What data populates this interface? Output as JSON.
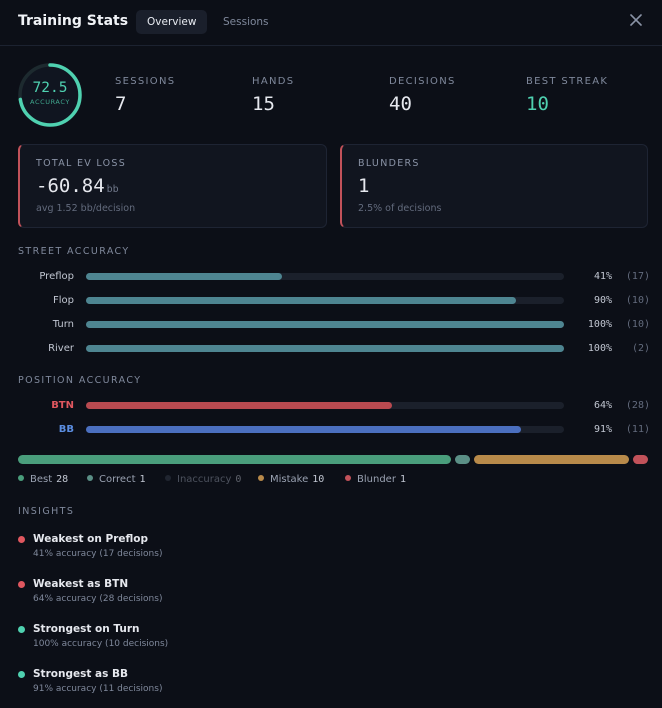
{
  "header": {
    "title": "Training Stats",
    "tabs": [
      {
        "label": "Overview",
        "active": true
      },
      {
        "label": "Sessions",
        "active": false
      }
    ],
    "close_icon": "close-icon"
  },
  "summary": {
    "accuracy": {
      "value": "72.5",
      "label": "ACCURACY",
      "fraction": 0.725,
      "color": "#4fd1b0"
    },
    "stats": [
      {
        "label": "SESSIONS",
        "value": "7"
      },
      {
        "label": "HANDS",
        "value": "15"
      },
      {
        "label": "DECISIONS",
        "value": "40"
      },
      {
        "label": "BEST STREAK",
        "value": "10"
      }
    ]
  },
  "cards": {
    "ev_loss": {
      "label": "TOTAL EV LOSS",
      "value": "-60.84",
      "unit": "bb",
      "sub": "avg 1.52 bb/decision"
    },
    "blunders": {
      "label": "BLUNDERS",
      "value": "1",
      "sub": "2.5% of decisions"
    }
  },
  "street_accuracy": {
    "title": "STREET ACCURACY",
    "rows": [
      {
        "label": "Preflop",
        "pct": "41%",
        "count": "(17)",
        "fraction": 0.41
      },
      {
        "label": "Flop",
        "pct": "90%",
        "count": "(10)",
        "fraction": 0.9
      },
      {
        "label": "Turn",
        "pct": "100%",
        "count": "(10)",
        "fraction": 1.0
      },
      {
        "label": "River",
        "pct": "100%",
        "count": "(2)",
        "fraction": 1.0
      }
    ],
    "bar_color": "#4e8591"
  },
  "position_accuracy": {
    "title": "POSITION ACCURACY",
    "rows": [
      {
        "label": "BTN",
        "pct": "64%",
        "count": "(28)",
        "fraction": 0.64,
        "color": "#b94a50"
      },
      {
        "label": "BB",
        "pct": "91%",
        "count": "(11)",
        "fraction": 0.91,
        "color": "#4b6fbf"
      }
    ]
  },
  "distribution": {
    "items": [
      {
        "name": "Best",
        "count": "28",
        "value": 28,
        "color": "#4a9e7c"
      },
      {
        "name": "Correct",
        "count": "1",
        "value": 1,
        "color": "#5b8f86"
      },
      {
        "name": "Inaccuracy",
        "count": "0",
        "value": 0,
        "color": "#3a4150"
      },
      {
        "name": "Mistake",
        "count": "10",
        "value": 10,
        "color": "#b88a4a"
      },
      {
        "name": "Blunder",
        "count": "1",
        "value": 1,
        "color": "#c2525a"
      }
    ]
  },
  "insights": {
    "title": "INSIGHTS",
    "items": [
      {
        "title": "Weakest on Preflop",
        "sub": "41% accuracy (17 decisions)",
        "color": "#e0575f"
      },
      {
        "title": "Weakest as BTN",
        "sub": "64% accuracy (28 decisions)",
        "color": "#e0575f"
      },
      {
        "title": "Strongest on Turn",
        "sub": "100% accuracy (10 decisions)",
        "color": "#4fd1b0"
      },
      {
        "title": "Strongest as BB",
        "sub": "91% accuracy (11 decisions)",
        "color": "#4fd1b0"
      }
    ]
  }
}
